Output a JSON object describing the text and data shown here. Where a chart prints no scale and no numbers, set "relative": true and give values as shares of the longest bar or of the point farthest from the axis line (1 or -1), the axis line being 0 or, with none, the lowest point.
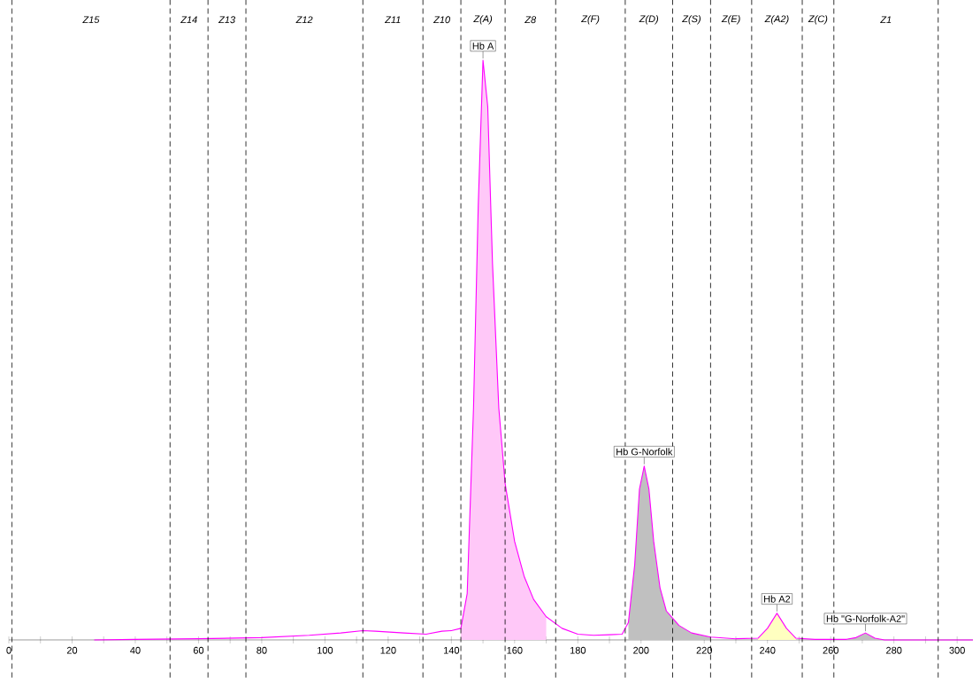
{
  "chart_data": {
    "type": "line",
    "relative": true,
    "xlim": [
      0,
      305
    ],
    "xticks": [
      0,
      {
        "value": 10,
        "label": null
      },
      20,
      {
        "value": 30,
        "label": null
      },
      40,
      {
        "value": 50,
        "label": null
      },
      60,
      {
        "value": 70,
        "label": null
      },
      80,
      {
        "value": 90,
        "label": null
      },
      100,
      {
        "value": 110,
        "label": null
      },
      120,
      {
        "value": 130,
        "label": null
      },
      140,
      {
        "value": 150,
        "label": null
      },
      160,
      {
        "value": 170,
        "label": null
      },
      180,
      {
        "value": 190,
        "label": null
      },
      200,
      {
        "value": 210,
        "label": null
      },
      220,
      {
        "value": 230,
        "label": null
      },
      240,
      {
        "value": 250,
        "label": null
      },
      260,
      {
        "value": 270,
        "label": null
      },
      280,
      {
        "value": 290,
        "label": null
      },
      300
    ],
    "series": [
      {
        "type": "area",
        "color": "#ffc8f8",
        "x": [
          143,
          145,
          147,
          148.5,
          150,
          151.5,
          153,
          155,
          157,
          160,
          163,
          166,
          170
        ],
        "values": [
          0.02,
          0.08,
          0.4,
          0.75,
          1.0,
          0.92,
          0.65,
          0.4,
          0.27,
          0.17,
          0.11,
          0.07,
          0.04
        ]
      },
      {
        "type": "area",
        "color": "#c0c0c0",
        "x": [
          196,
          198,
          199.5,
          201,
          202.5,
          204,
          206,
          208,
          212,
          216,
          222
        ],
        "values": [
          0.03,
          0.13,
          0.26,
          0.3,
          0.26,
          0.17,
          0.09,
          0.05,
          0.025,
          0.012,
          0.005
        ]
      },
      {
        "type": "area",
        "color": "#ffffc0",
        "x": [
          237,
          240,
          243,
          246,
          249
        ],
        "values": [
          0.003,
          0.02,
          0.046,
          0.02,
          0.003
        ]
      },
      {
        "type": "area",
        "color": "#c0c0c0",
        "x": [
          265,
          268,
          271,
          274,
          277
        ],
        "values": [
          0.001,
          0.004,
          0.012,
          0.003,
          0.0
        ]
      },
      {
        "color": "#ff00ff",
        "x": [
          27,
          40,
          60,
          80,
          95,
          105,
          112,
          116,
          125,
          132,
          137,
          140,
          143,
          145,
          147,
          148.5,
          150,
          151.5,
          153,
          155,
          157,
          160,
          163,
          166,
          170,
          175,
          180,
          185,
          190,
          194,
          196,
          198,
          199.5,
          201,
          202.5,
          204,
          206,
          208,
          212,
          216,
          222,
          230,
          237,
          240,
          243,
          246,
          249,
          255,
          265,
          268,
          271,
          274,
          277,
          300,
          305
        ],
        "values": [
          0,
          0.001,
          0.002,
          0.004,
          0.008,
          0.012,
          0.016,
          0.015,
          0.012,
          0.01,
          0.015,
          0.016,
          0.02,
          0.08,
          0.4,
          0.75,
          1.0,
          0.92,
          0.65,
          0.4,
          0.27,
          0.17,
          0.11,
          0.07,
          0.04,
          0.02,
          0.01,
          0.008,
          0.009,
          0.01,
          0.03,
          0.13,
          0.26,
          0.3,
          0.26,
          0.17,
          0.09,
          0.05,
          0.025,
          0.012,
          0.005,
          0.002,
          0.003,
          0.02,
          0.046,
          0.02,
          0.003,
          0.001,
          0.001,
          0.004,
          0.012,
          0.003,
          0,
          0,
          0
        ]
      }
    ],
    "ref_lines": [
      {
        "axis": "x",
        "value": 1,
        "line_style": "dashed",
        "color": "#000000"
      },
      {
        "axis": "x",
        "value": 51,
        "line_style": "dashed",
        "color": "#000000"
      },
      {
        "axis": "x",
        "value": 63,
        "line_style": "dashed",
        "color": "#000000"
      },
      {
        "axis": "x",
        "value": 75,
        "line_style": "dashed",
        "color": "#000000"
      },
      {
        "axis": "x",
        "value": 112,
        "line_style": "dashed",
        "color": "#000000"
      },
      {
        "axis": "x",
        "value": 131,
        "line_style": "dashed",
        "color": "#000000"
      },
      {
        "axis": "x",
        "value": 143,
        "line_style": "dashed",
        "color": "#000000"
      },
      {
        "axis": "x",
        "value": 157,
        "line_style": "dashed",
        "color": "#000000"
      },
      {
        "axis": "x",
        "value": 173,
        "line_style": "dashed",
        "color": "#000000"
      },
      {
        "axis": "x",
        "value": 195,
        "line_style": "dashed",
        "color": "#000000"
      },
      {
        "axis": "x",
        "value": 210,
        "line_style": "dashed",
        "color": "#000000"
      },
      {
        "axis": "x",
        "value": 222,
        "line_style": "dashed",
        "color": "#000000"
      },
      {
        "axis": "x",
        "value": 235,
        "line_style": "dashed",
        "color": "#000000"
      },
      {
        "axis": "x",
        "value": 251,
        "line_style": "dashed",
        "color": "#000000"
      },
      {
        "axis": "x",
        "value": 261,
        "line_style": "dashed",
        "color": "#000000"
      },
      {
        "axis": "x",
        "value": 294,
        "line_style": "dashed",
        "color": "#000000"
      }
    ],
    "annotations": [
      "Z15",
      "Z14",
      "Z13",
      "Z12",
      "Z11",
      "Z10",
      "Z(A)",
      "Z8",
      "Z(F)",
      "Z(D)",
      "Z(S)",
      "Z(E)",
      "Z(A2)",
      "Z(C)",
      "Z1",
      {
        "text": "Hb A",
        "x": 150,
        "y": 1.0
      },
      {
        "text": "Hb G-Norfolk",
        "x": 201,
        "y": 0.3
      },
      {
        "text": "Hb A2",
        "x": 243,
        "y": 0.046
      },
      {
        "text": "Hb \"G-Norfolk-A2\"",
        "x": 271,
        "y": 0.012
      }
    ],
    "grid": false,
    "marker": "none"
  }
}
